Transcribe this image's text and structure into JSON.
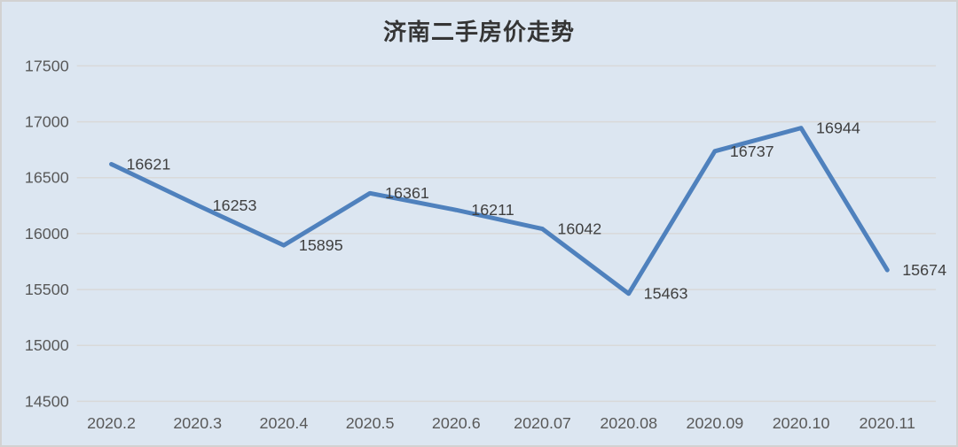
{
  "frame": {
    "background_color": "#dce6f1",
    "border_color": "#d2d2d2"
  },
  "chart_data": {
    "type": "line",
    "title": "济南二手房价走势",
    "categories": [
      "2020.2",
      "2020.3",
      "2020.4",
      "2020.5",
      "2020.6",
      "2020.07",
      "2020.08",
      "2020.09",
      "2020.10",
      "2020.11"
    ],
    "values": [
      16621,
      16253,
      15895,
      16361,
      16211,
      16042,
      15463,
      16737,
      16944,
      15674
    ],
    "xlabel": "",
    "ylabel": "",
    "ylim": [
      14500,
      17500
    ],
    "ytick_step": 500,
    "yticks": [
      14500,
      15000,
      15500,
      16000,
      16500,
      17000,
      17500
    ],
    "grid": "horizontal-only",
    "legend": "none",
    "data_labels": "shown-right-of-points",
    "line_color": "#4f81bd",
    "gridline_color": "#d9d9d9",
    "axis_label_color": "#595959",
    "data_label_color": "#404040",
    "title_color": "#353535"
  }
}
